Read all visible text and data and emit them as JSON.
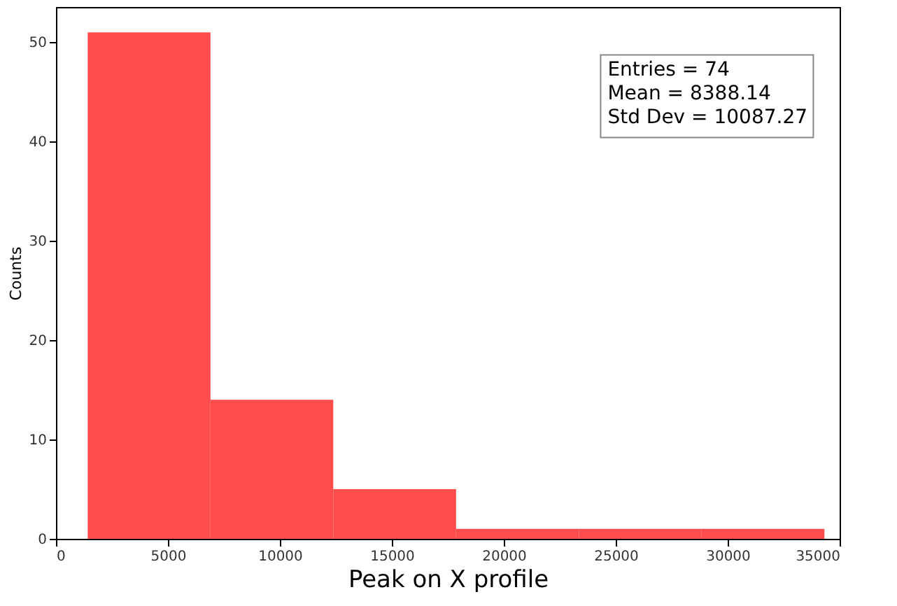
{
  "chart_data": {
    "type": "histogram",
    "xlabel": "Peak on X profile",
    "ylabel": "Counts",
    "bins": [
      1417,
      6901,
      12385,
      17869,
      23353,
      28837,
      34321
    ],
    "values": [
      51,
      14,
      5,
      1,
      1,
      1
    ],
    "color": "#ff4d4d",
    "xlim": [
      0,
      35000
    ],
    "xticks": [
      0,
      5000,
      10000,
      15000,
      20000,
      25000,
      30000,
      35000
    ],
    "ylim": [
      0,
      53.55
    ],
    "yticks": [
      0,
      10,
      20,
      30,
      40,
      50
    ],
    "grid": false,
    "annotations": [
      "Entries = 74",
      "Mean = 8388.14",
      "Std Dev = 10087.27"
    ]
  }
}
